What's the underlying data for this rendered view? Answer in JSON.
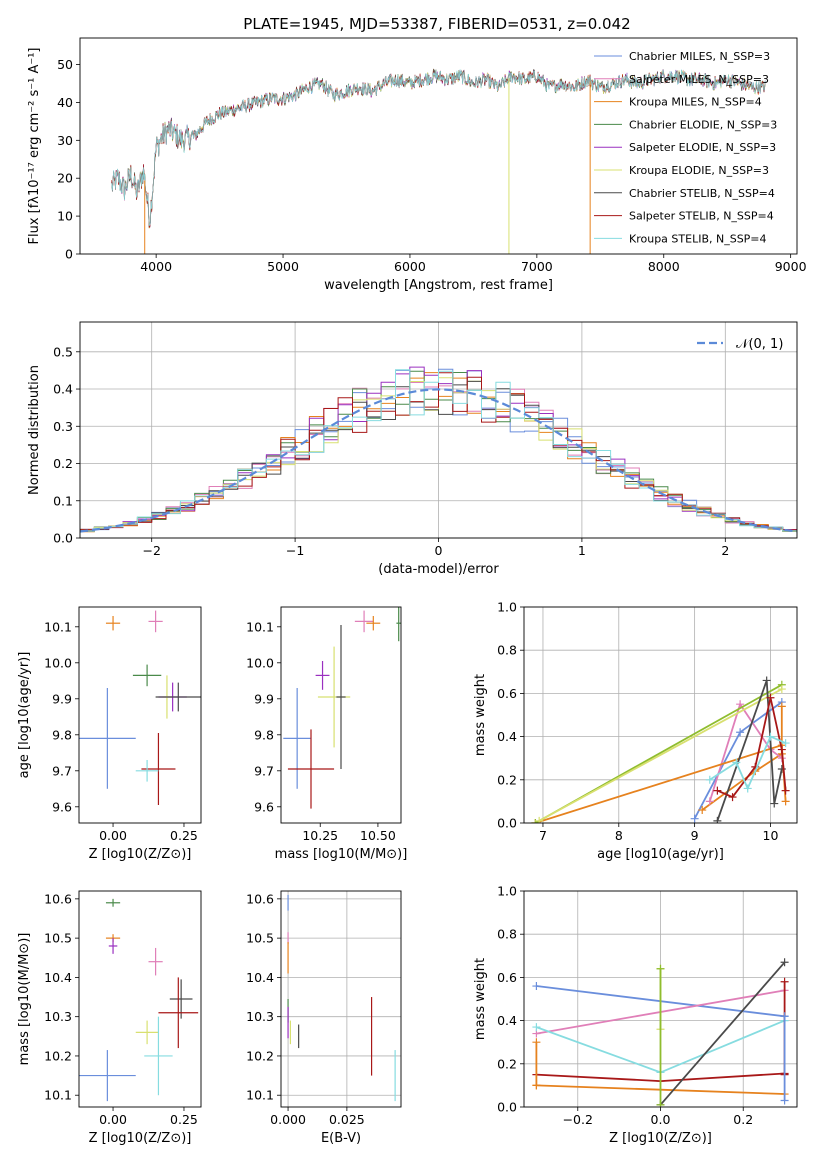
{
  "chart_data": [
    {
      "type": "line",
      "title": "PLATE=1945, MJD=53387, FIBERID=0531, z=0.042",
      "xlabel": "wavelength [Angstrom, rest frame]",
      "ylabel": "Flux [fλ10⁻¹⁷ erg cm⁻² s⁻¹ A⁻¹]",
      "xlim": [
        3400,
        9050
      ],
      "ylim": [
        0,
        57
      ],
      "xticks": [
        4000,
        5000,
        6000,
        7000,
        8000,
        9000
      ],
      "yticks": [
        0,
        10,
        20,
        30,
        40,
        50
      ],
      "legend_position": "top-right",
      "series_names": [
        "Chabrier MILES, N_SSP=3",
        "Salpeter MILES, N_SSP=3",
        "Kroupa MILES, N_SSP=4",
        "Chabrier ELODIE, N_SSP=3",
        "Salpeter ELODIE, N_SSP=3",
        "Kroupa ELODIE, N_SSP=3",
        "Chabrier STELIB, N_SSP=4",
        "Salpeter STELIB, N_SSP=4",
        "Kroupa STELIB, N_SSP=4"
      ],
      "spectrum_knots": {
        "x": [
          3650,
          3700,
          3750,
          3800,
          3850,
          3900,
          3950,
          4000,
          4050,
          4100,
          4200,
          4300,
          4400,
          4500,
          4600,
          4700,
          4800,
          4900,
          5000,
          5100,
          5200,
          5300,
          5400,
          5500,
          5600,
          5700,
          5800,
          5900,
          6000,
          6100,
          6200,
          6300,
          6400,
          6500,
          6600,
          6700,
          6800,
          6900,
          7000,
          7100,
          7200,
          7300,
          7400,
          7500,
          7600,
          7700,
          7800,
          7900,
          8000,
          8100,
          8200,
          8300,
          8400,
          8500,
          8600,
          8700,
          8800
        ],
        "y": [
          18,
          20,
          17,
          21,
          16,
          22,
          9,
          28,
          31,
          33,
          30,
          31,
          35,
          37,
          38,
          39,
          40,
          41,
          41,
          42,
          44,
          45,
          42,
          43,
          44,
          43,
          45,
          46,
          45,
          46,
          47,
          46,
          47,
          45,
          46,
          44,
          47,
          46,
          47,
          44,
          45,
          44,
          46,
          44,
          45,
          46,
          45,
          46,
          47,
          47,
          46,
          46,
          45,
          46,
          45,
          44,
          44
        ]
      },
      "dropouts": [
        {
          "x": 3910,
          "y": 0
        },
        {
          "x": 6780,
          "y": 0
        },
        {
          "x": 7420,
          "y": 0
        }
      ]
    },
    {
      "type": "line",
      "xlabel": "(data-model)/error",
      "ylabel": "Normed distribution",
      "xlim": [
        -2.5,
        2.5
      ],
      "ylim": [
        0,
        0.58
      ],
      "xticks": [
        -2,
        -1,
        0,
        1,
        2
      ],
      "yticks": [
        0.0,
        0.1,
        0.2,
        0.3,
        0.4,
        0.5
      ],
      "grid": true,
      "legend": "𝒩(0, 1)",
      "legend_position": "top-right",
      "description_values": "step histograms of normalized residuals for the 9 fits, bin width 0.1, following a standard normal density",
      "gaussian": {
        "mean": 0,
        "sigma": 1
      }
    },
    {
      "type": "scatter",
      "xlabel": "Z [log10(Z/Z⊙)]",
      "ylabel": "age  [log10(age/yr)]",
      "xlim": [
        -0.12,
        0.31
      ],
      "ylim": [
        9.555,
        10.155
      ],
      "xticks": [
        0.0,
        0.25
      ],
      "yticks": [
        9.6,
        9.7,
        9.8,
        9.9,
        10.0,
        10.1
      ],
      "points": [
        {
          "x": -0.02,
          "y": 9.79,
          "ex": 0.1,
          "ey": 0.14
        },
        {
          "x": 0.15,
          "y": 10.115,
          "ex": 0.025,
          "ey": 0.03
        },
        {
          "x": 0.0,
          "y": 10.11,
          "ex": 0.025,
          "ey": 0.02
        },
        {
          "x": 0.12,
          "y": 9.965,
          "ex": 0.05,
          "ey": 0.03
        },
        {
          "x": 0.21,
          "y": 9.905,
          "ex": 0.05,
          "ey": 0.04
        },
        {
          "x": 0.19,
          "y": 9.905,
          "ex": 0.015,
          "ey": 0.06
        },
        {
          "x": 0.23,
          "y": 9.905,
          "ex": 0.08,
          "ey": 0.04
        },
        {
          "x": 0.16,
          "y": 9.705,
          "ex": 0.06,
          "ey": 0.1
        },
        {
          "x": 0.12,
          "y": 9.7,
          "ex": 0.04,
          "ey": 0.03
        }
      ]
    },
    {
      "type": "scatter",
      "xlabel": "mass [log10(M/M⊙)]",
      "xlim": [
        10.08,
        10.6
      ],
      "ylim": [
        9.555,
        10.155
      ],
      "xticks": [
        10.25,
        10.5
      ],
      "yticks": [
        9.6,
        9.7,
        9.8,
        9.9,
        10.0,
        10.1
      ],
      "points": [
        {
          "x": 10.15,
          "y": 9.79,
          "ex": 0.06,
          "ey": 0.14
        },
        {
          "x": 10.44,
          "y": 10.115,
          "ex": 0.04,
          "ey": 0.03
        },
        {
          "x": 10.48,
          "y": 10.11,
          "ex": 0.03,
          "ey": 0.02
        },
        {
          "x": 10.59,
          "y": 10.11,
          "ex": 0.01,
          "ey": 0.05
        },
        {
          "x": 10.26,
          "y": 9.965,
          "ex": 0.03,
          "ey": 0.04
        },
        {
          "x": 10.31,
          "y": 9.905,
          "ex": 0.07,
          "ey": 0.14
        },
        {
          "x": 10.34,
          "y": 9.905,
          "ex": 0.02,
          "ey": 0.2
        },
        {
          "x": 10.21,
          "y": 9.705,
          "ex": 0.1,
          "ey": 0.11
        }
      ]
    },
    {
      "type": "line",
      "xlabel": "age  [log10(age/yr)]",
      "ylabel": "mass weight",
      "xlim": [
        6.75,
        10.35
      ],
      "ylim": [
        0,
        1.0
      ],
      "xticks": [
        7,
        8,
        9,
        10
      ],
      "yticks": [
        0.0,
        0.2,
        0.4,
        0.6,
        0.8,
        1.0
      ],
      "grid": true,
      "series": [
        {
          "color": "#6a8edc",
          "x": [
            9.0,
            9.6,
            10.15
          ],
          "y": [
            0.02,
            0.42,
            0.56
          ]
        },
        {
          "color": "#e6821e",
          "x": [
            9.1,
            9.8,
            10.15,
            10.15
          ],
          "y": [
            0.06,
            0.24,
            0.32,
            0.54
          ]
        },
        {
          "color": "#e07fb8",
          "x": [
            9.2,
            9.6,
            10.0,
            10.15
          ],
          "y": [
            0.1,
            0.55,
            0.34,
            0.3
          ]
        },
        {
          "color": "#e6821e",
          "x": [
            6.9,
            10.15,
            10.2
          ],
          "y": [
            0.0,
            0.36,
            0.1
          ]
        },
        {
          "color": "#8fbd2e",
          "x": [
            6.9,
            10.15
          ],
          "y": [
            0.0,
            0.64
          ]
        },
        {
          "color": "#d8e070",
          "x": [
            6.95,
            10.15
          ],
          "y": [
            0.01,
            0.62
          ]
        },
        {
          "color": "#4a4a4a",
          "x": [
            9.3,
            9.95,
            10.05,
            10.15
          ],
          "y": [
            0.01,
            0.66,
            0.09,
            0.25
          ]
        },
        {
          "color": "#a81818",
          "x": [
            9.3,
            9.5,
            9.8,
            10.0,
            10.15,
            10.2
          ],
          "y": [
            0.15,
            0.12,
            0.26,
            0.58,
            0.34,
            0.15
          ]
        },
        {
          "color": "#86dce0",
          "x": [
            9.2,
            9.55,
            9.7,
            10.0,
            10.2
          ],
          "y": [
            0.2,
            0.28,
            0.16,
            0.4,
            0.37
          ]
        }
      ]
    },
    {
      "type": "scatter",
      "xlabel": "Z [log10(Z/Z⊙)]",
      "ylabel": "mass [log10(M/M⊙)]",
      "xlim": [
        -0.12,
        0.31
      ],
      "ylim": [
        10.07,
        10.62
      ],
      "xticks": [
        0.0,
        0.25
      ],
      "yticks": [
        10.1,
        10.2,
        10.3,
        10.4,
        10.5,
        10.6
      ],
      "points": [
        {
          "x": -0.02,
          "y": 10.15,
          "ex": 0.1,
          "ey": 0.065
        },
        {
          "x": 0.15,
          "y": 10.44,
          "ex": 0.025,
          "ey": 0.035
        },
        {
          "x": 0.0,
          "y": 10.5,
          "ex": 0.025,
          "ey": 0.01
        },
        {
          "x": 0.0,
          "y": 10.59,
          "ex": 0.025,
          "ey": 0.01
        },
        {
          "x": 0.0,
          "y": 10.48,
          "ex": 0.015,
          "ey": 0.02
        },
        {
          "x": 0.12,
          "y": 10.26,
          "ex": 0.04,
          "ey": 0.03
        },
        {
          "x": 0.24,
          "y": 10.345,
          "ex": 0.04,
          "ey": 0.05
        },
        {
          "x": 0.23,
          "y": 10.31,
          "ex": 0.07,
          "ey": 0.09
        },
        {
          "x": 0.16,
          "y": 10.2,
          "ex": 0.05,
          "ey": 0.1
        }
      ]
    },
    {
      "type": "scatter",
      "xlabel": "E(B-V)",
      "xlim": [
        -0.003,
        0.048
      ],
      "ylim": [
        10.07,
        10.62
      ],
      "xticks": [
        0.0,
        0.025
      ],
      "yticks": [
        10.1,
        10.2,
        10.3,
        10.4,
        10.5,
        10.6
      ],
      "grid": true,
      "points": [
        {
          "x": 0.0,
          "y": 10.59,
          "ex": 0.0,
          "ey": 0.02
        },
        {
          "x": 0.0,
          "y": 10.5,
          "ex": 0.0,
          "ey": 0.015
        },
        {
          "x": 0.0,
          "y": 10.45,
          "ex": 0.0,
          "ey": 0.04
        },
        {
          "x": 0.0,
          "y": 10.315,
          "ex": 0.0,
          "ey": 0.03
        },
        {
          "x": 0.0,
          "y": 10.285,
          "ex": 0.0,
          "ey": 0.04
        },
        {
          "x": 0.001,
          "y": 10.26,
          "ex": 0.0,
          "ey": 0.03
        },
        {
          "x": 0.0045,
          "y": 10.25,
          "ex": 0.0,
          "ey": 0.03
        },
        {
          "x": 0.0355,
          "y": 10.25,
          "ex": 0.0,
          "ey": 0.1
        },
        {
          "x": 0.0455,
          "y": 10.15,
          "ex": 0.0,
          "ey": 0.065
        }
      ]
    },
    {
      "type": "line",
      "xlabel": "Z [log10(Z/Z⊙)]",
      "ylabel": "mass weight",
      "xlim": [
        -0.33,
        0.33
      ],
      "ylim": [
        0,
        1.0
      ],
      "xticks": [
        -0.2,
        0.0,
        0.2
      ],
      "yticks": [
        0.0,
        0.2,
        0.4,
        0.6,
        0.8,
        1.0
      ],
      "grid": true,
      "series": [
        {
          "color": "#6a8edc",
          "x": [
            -0.3,
            0.3
          ],
          "y": [
            0.56,
            0.42
          ]
        },
        {
          "color": "#e07fb8",
          "x": [
            -0.3,
            0.3
          ],
          "y": [
            0.34,
            0.54
          ]
        },
        {
          "color": "#e6821e",
          "x": [
            -0.3,
            0.0,
            0.3
          ],
          "y": [
            0.1,
            0.08,
            0.06
          ]
        },
        {
          "color": "#a81818",
          "x": [
            -0.3,
            0.0,
            0.3
          ],
          "y": [
            0.15,
            0.12,
            0.155
          ]
        },
        {
          "color": "#86dce0",
          "x": [
            -0.3,
            0.0,
            0.3
          ],
          "y": [
            0.37,
            0.16,
            0.4
          ]
        },
        {
          "color": "#4a4a4a",
          "x": [
            0.0,
            0.3
          ],
          "y": [
            0.01,
            0.67
          ]
        },
        {
          "color": "#d8e070",
          "x": [
            0.0,
            0.0
          ],
          "y": [
            0.36,
            0.64
          ]
        },
        {
          "color": "#8fbd2e",
          "x": [
            0.0,
            0.0
          ],
          "y": [
            0.01,
            0.64
          ]
        },
        {
          "color": "#e6821e",
          "x": [
            -0.3,
            -0.3
          ],
          "y": [
            0.1,
            0.3
          ]
        },
        {
          "color": "#a81818",
          "x": [
            0.3,
            0.3
          ],
          "y": [
            0.15,
            0.58
          ]
        },
        {
          "color": "#6a8edc",
          "x": [
            0.3,
            0.3
          ],
          "y": [
            0.03,
            0.42
          ]
        }
      ]
    }
  ],
  "fit_colors": [
    "#6a8edc",
    "#e07fb8",
    "#e6821e",
    "#4a8a4a",
    "#9a30c0",
    "#d8e070",
    "#4a4a4a",
    "#a81818",
    "#86dce0"
  ],
  "gauss_color": "#5b8ad8"
}
